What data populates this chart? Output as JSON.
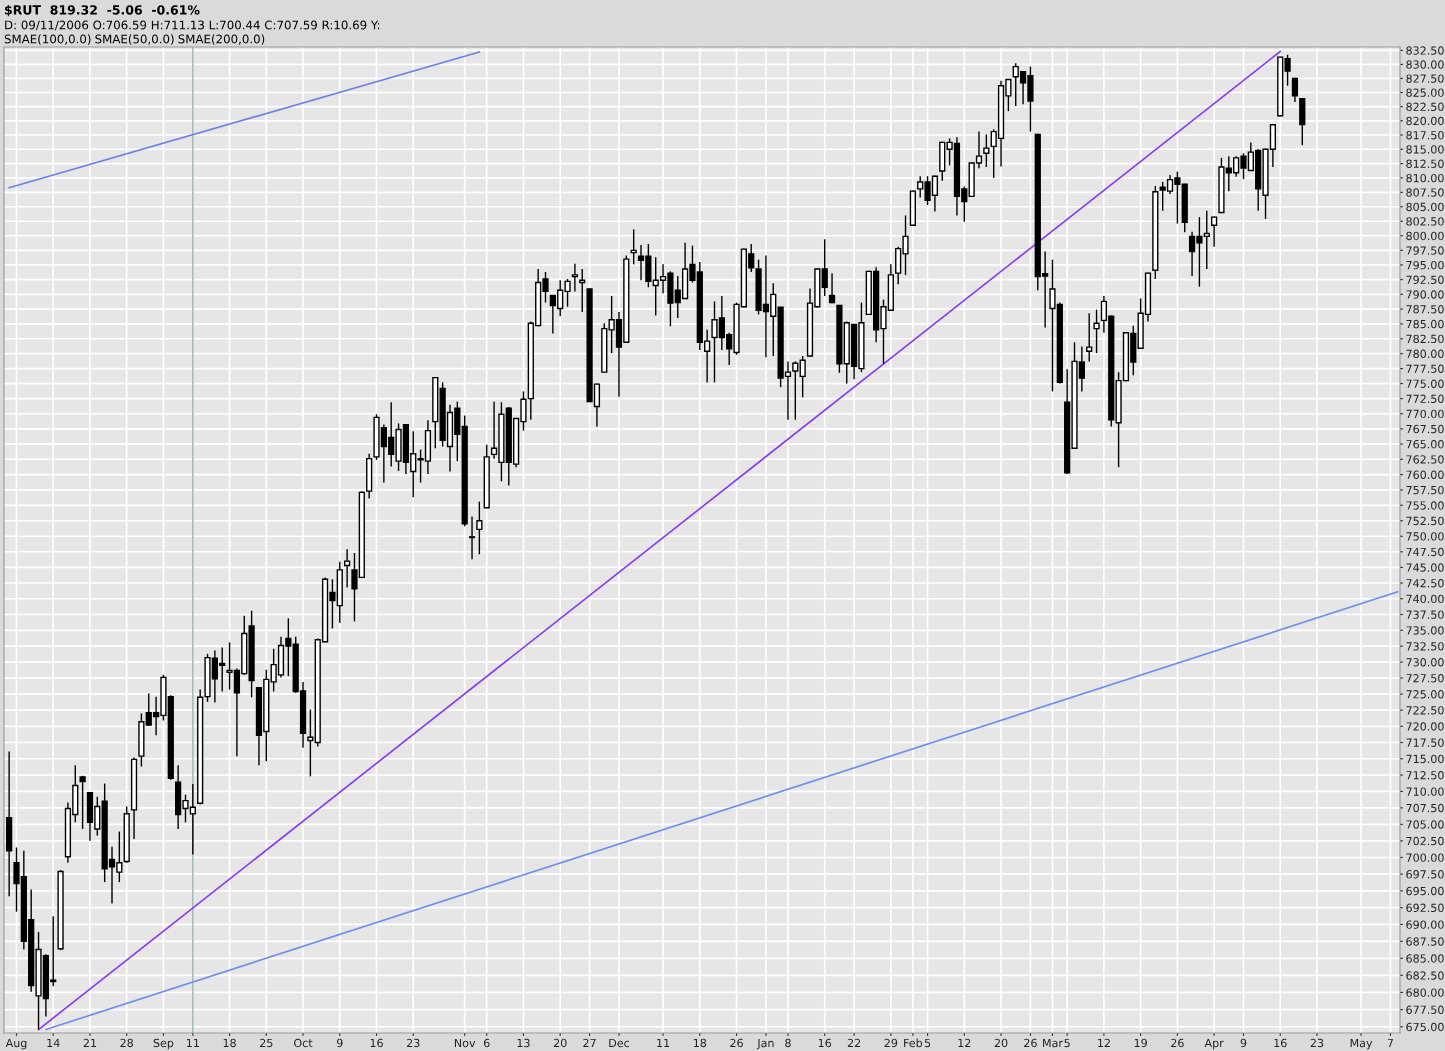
{
  "chart_data": {
    "type": "candlestick",
    "title": "$RUT  819.32  -5.06  -0.61%",
    "subtitle": "D: 09/11/2006 O:706.59 H:711.13 L:700.44 C:707.59 R:10.69 Y:",
    "annotations": [
      "SMAE(100,0.0)",
      "SMAE(50,0.0)",
      "SMAE(200,0.0)"
    ],
    "categories": [
      null,
      "Aug",
      null,
      null,
      null,
      null,
      "14",
      null,
      null,
      null,
      null,
      "21",
      null,
      null,
      null,
      null,
      "28",
      null,
      null,
      null,
      null,
      "Sep",
      null,
      null,
      null,
      "11",
      null,
      null,
      null,
      null,
      "18",
      null,
      null,
      null,
      null,
      "25",
      null,
      null,
      null,
      null,
      "Oct",
      null,
      null,
      null,
      null,
      "9",
      null,
      null,
      null,
      null,
      "16",
      null,
      null,
      null,
      null,
      "23",
      null,
      null,
      null,
      null,
      null,
      null,
      "Nov",
      null,
      null,
      "6",
      null,
      null,
      null,
      null,
      "13",
      null,
      null,
      null,
      null,
      "20",
      null,
      null,
      null,
      "27",
      null,
      null,
      null,
      "Dec",
      null,
      null,
      null,
      null,
      null,
      "11",
      null,
      null,
      null,
      null,
      "18",
      null,
      null,
      null,
      null,
      "26",
      null,
      null,
      null,
      "Jan",
      null,
      null,
      "8",
      null,
      null,
      null,
      null,
      "16",
      null,
      null,
      null,
      "22",
      null,
      null,
      null,
      null,
      "29",
      null,
      null,
      "Feb",
      null,
      "5",
      null,
      null,
      null,
      null,
      "12",
      null,
      null,
      null,
      null,
      "20",
      null,
      null,
      null,
      "26",
      null,
      null,
      "Mar",
      null,
      "5",
      null,
      null,
      null,
      null,
      "12",
      null,
      null,
      null,
      null,
      "19",
      null,
      null,
      null,
      null,
      "26",
      null,
      null,
      null,
      null,
      "Apr",
      null,
      null,
      null,
      "9",
      null,
      null,
      null,
      null,
      "16",
      null,
      null,
      null,
      null,
      "23",
      null,
      null,
      null,
      null,
      null,
      "May",
      null,
      null,
      null,
      "7",
      null
    ],
    "color": "#000000",
    "ohlc": [
      [
        706.0,
        716.1,
        694.2,
        701.0
      ],
      [
        699.2,
        701.5,
        691.9,
        696.1
      ],
      [
        697.1,
        701.0,
        686.3,
        687.5
      ],
      [
        690.7,
        695.2,
        680.1,
        681.0
      ],
      [
        679.5,
        688.9,
        674.6,
        686.3
      ],
      [
        685.4,
        685.6,
        676.5,
        679.1
      ],
      [
        681.6,
        691.2,
        680.9,
        681.8
      ],
      [
        686.4,
        698.1,
        686.2,
        697.9
      ],
      [
        700.1,
        708.3,
        699.2,
        707.4
      ],
      [
        706.5,
        714.0,
        705.3,
        710.9
      ],
      [
        712.2,
        712.4,
        704.3,
        711.5
      ],
      [
        709.8,
        709.9,
        702.5,
        705.3
      ],
      [
        704.3,
        709.2,
        703.3,
        707.7
      ],
      [
        708.5,
        711.2,
        696.3,
        698.3
      ],
      [
        699.7,
        701.6,
        693.1,
        698.6
      ],
      [
        697.8,
        703.9,
        696.3,
        699.2
      ],
      [
        699.4,
        707.7,
        699.2,
        706.6
      ],
      [
        707.2,
        715.2,
        702.8,
        714.9
      ],
      [
        715.4,
        722.0,
        713.8,
        720.7
      ],
      [
        722.1,
        725.1,
        720.1,
        720.2
      ],
      [
        722.1,
        724.6,
        718.6,
        721.5
      ],
      [
        721.7,
        728.0,
        720.9,
        727.6
      ],
      [
        724.6,
        724.8,
        711.8,
        712.0
      ],
      [
        711.4,
        714.0,
        704.3,
        706.5
      ],
      [
        707.4,
        709.5,
        705.3,
        708.6
      ],
      [
        706.59,
        711.13,
        700.44,
        707.59
      ],
      [
        708.2,
        725.7,
        708.0,
        724.5
      ],
      [
        724.6,
        731.3,
        723.8,
        730.7
      ],
      [
        730.6,
        731.8,
        723.7,
        727.4
      ],
      [
        729.8,
        732.3,
        725.4,
        729.5
      ],
      [
        728.4,
        733.1,
        725.7,
        728.7
      ],
      [
        728.7,
        729.0,
        715.4,
        725.2
      ],
      [
        728.2,
        737.3,
        728.0,
        734.5
      ],
      [
        735.7,
        738.1,
        724.5,
        727.1
      ],
      [
        726.0,
        726.0,
        714.0,
        718.6
      ],
      [
        719.2,
        728.8,
        714.6,
        727.3
      ],
      [
        726.9,
        732.1,
        725.4,
        729.6
      ],
      [
        728.0,
        734.0,
        727.6,
        732.6
      ],
      [
        733.7,
        736.9,
        727.8,
        732.5
      ],
      [
        732.8,
        734.0,
        725.2,
        725.4
      ],
      [
        725.5,
        726.9,
        716.7,
        718.9
      ],
      [
        717.8,
        722.6,
        712.3,
        718.3
      ],
      [
        717.5,
        733.7,
        716.9,
        733.5
      ],
      [
        733.2,
        743.4,
        733.1,
        743.1
      ],
      [
        741.0,
        743.1,
        735.3,
        739.7
      ],
      [
        738.9,
        745.9,
        736.2,
        744.6
      ],
      [
        745.3,
        747.9,
        741.8,
        746.0
      ],
      [
        744.6,
        747.3,
        736.4,
        741.6
      ],
      [
        743.4,
        757.3,
        743.3,
        757.1
      ],
      [
        757.3,
        763.4,
        756.1,
        762.6
      ],
      [
        762.9,
        769.9,
        762.4,
        769.4
      ],
      [
        767.7,
        768.2,
        758.7,
        764.6
      ],
      [
        766.1,
        771.9,
        761.3,
        763.3
      ],
      [
        762.2,
        768.4,
        760.6,
        767.4
      ],
      [
        768.2,
        768.3,
        760.1,
        762.0
      ],
      [
        760.5,
        767.1,
        756.3,
        763.4
      ],
      [
        762.4,
        764.1,
        758.7,
        762.6
      ],
      [
        762.2,
        768.9,
        760.1,
        767.2
      ],
      [
        768.7,
        776.0,
        764.3,
        776.0
      ],
      [
        774.2,
        775.2,
        764.6,
        765.6
      ],
      [
        764.6,
        771.5,
        760.5,
        770.2
      ],
      [
        770.9,
        772.0,
        762.2,
        766.6
      ],
      [
        767.9,
        769.7,
        751.6,
        752.0
      ],
      [
        749.8,
        753.2,
        746.3,
        749.9
      ],
      [
        751.1,
        755.6,
        747.1,
        752.5
      ],
      [
        754.6,
        764.9,
        754.6,
        762.9
      ],
      [
        763.3,
        772.0,
        762.6,
        764.3
      ],
      [
        762.0,
        771.9,
        758.9,
        769.9
      ],
      [
        770.9,
        771.1,
        758.2,
        762.0
      ],
      [
        761.7,
        769.3,
        761.2,
        769.2
      ],
      [
        768.7,
        773.7,
        767.2,
        772.4
      ],
      [
        772.5,
        785.4,
        769.0,
        785.1
      ],
      [
        784.7,
        794.3,
        784.6,
        792.0
      ],
      [
        792.6,
        793.8,
        788.6,
        790.5
      ],
      [
        789.8,
        789.9,
        783.4,
        788.1
      ],
      [
        787.6,
        792.4,
        786.3,
        790.7
      ],
      [
        790.5,
        792.6,
        787.9,
        792.2
      ],
      [
        793.0,
        795.2,
        790.5,
        793.3
      ],
      [
        792.0,
        794.3,
        787.0,
        792.4
      ],
      [
        790.9,
        791.0,
        771.9,
        772.0
      ],
      [
        771.2,
        775.0,
        767.9,
        774.9
      ],
      [
        776.9,
        785.1,
        776.8,
        784.2
      ],
      [
        784.0,
        789.7,
        780.1,
        785.7
      ],
      [
        785.7,
        787.0,
        772.8,
        781.1
      ],
      [
        781.9,
        796.6,
        781.8,
        796.0
      ],
      [
        797.1,
        801.1,
        795.1,
        797.5
      ],
      [
        796.5,
        798.4,
        792.4,
        795.8
      ],
      [
        796.5,
        798.6,
        791.2,
        792.2
      ],
      [
        791.5,
        796.3,
        786.4,
        792.4
      ],
      [
        792.4,
        795.1,
        790.2,
        793.0
      ],
      [
        793.6,
        793.9,
        784.6,
        788.5
      ],
      [
        790.7,
        793.1,
        786.0,
        788.6
      ],
      [
        789.3,
        798.8,
        789.2,
        794.3
      ],
      [
        795.1,
        798.3,
        792.0,
        792.4
      ],
      [
        793.8,
        795.5,
        780.6,
        781.9
      ],
      [
        780.4,
        784.0,
        775.2,
        782.1
      ],
      [
        782.7,
        788.8,
        775.2,
        785.7
      ],
      [
        786.0,
        789.7,
        780.6,
        782.7
      ],
      [
        783.2,
        783.5,
        778.1,
        780.8
      ],
      [
        780.2,
        788.6,
        779.8,
        788.3
      ],
      [
        787.9,
        797.8,
        787.8,
        797.7
      ],
      [
        796.9,
        798.6,
        793.8,
        794.5
      ],
      [
        794.3,
        795.9,
        786.6,
        787.3
      ],
      [
        788.3,
        796.6,
        779.4,
        787.1
      ],
      [
        786.3,
        791.9,
        779.6,
        790.0
      ],
      [
        787.8,
        787.8,
        774.4,
        775.9
      ],
      [
        776.2,
        778.7,
        769.0,
        776.9
      ],
      [
        777.1,
        778.7,
        769.0,
        778.4
      ],
      [
        776.2,
        779.6,
        772.7,
        778.9
      ],
      [
        779.6,
        791.0,
        779.5,
        788.5
      ],
      [
        787.9,
        794.4,
        787.8,
        794.3
      ],
      [
        794.3,
        799.4,
        789.7,
        791.2
      ],
      [
        789.8,
        793.6,
        788.5,
        788.6
      ],
      [
        788.1,
        788.2,
        776.8,
        778.3
      ],
      [
        778.3,
        785.4,
        775.0,
        785.2
      ],
      [
        784.9,
        785.0,
        775.7,
        777.9
      ],
      [
        777.5,
        788.6,
        776.9,
        785.2
      ],
      [
        786.6,
        794.0,
        786.5,
        793.9
      ],
      [
        793.9,
        794.6,
        781.9,
        784.0
      ],
      [
        784.2,
        789.1,
        778.3,
        787.9
      ],
      [
        787.3,
        795.1,
        787.2,
        793.3
      ],
      [
        793.6,
        798.1,
        791.7,
        797.8
      ],
      [
        796.9,
        803.5,
        793.3,
        799.9
      ],
      [
        801.8,
        807.8,
        801.7,
        807.7
      ],
      [
        808.1,
        810.3,
        806.6,
        809.3
      ],
      [
        809.3,
        810.3,
        805.3,
        806.1
      ],
      [
        807.0,
        810.4,
        804.2,
        810.3
      ],
      [
        811.2,
        816.3,
        809.5,
        816.2
      ],
      [
        815.0,
        816.9,
        812.2,
        816.2
      ],
      [
        816.0,
        817.1,
        803.5,
        806.8
      ],
      [
        808.1,
        808.5,
        802.4,
        805.9
      ],
      [
        806.8,
        812.7,
        806.7,
        812.6
      ],
      [
        812.6,
        818.1,
        811.7,
        813.8
      ],
      [
        814.3,
        817.6,
        811.9,
        815.2
      ],
      [
        815.5,
        818.5,
        810.0,
        818.1
      ],
      [
        816.9,
        827.1,
        812.0,
        826.2
      ],
      [
        824.4,
        827.4,
        821.7,
        827.3
      ],
      [
        827.8,
        830.2,
        822.6,
        829.6
      ],
      [
        828.7,
        828.8,
        822.9,
        826.7
      ],
      [
        828.0,
        829.6,
        818.1,
        823.5
      ],
      [
        817.6,
        817.7,
        790.7,
        793.0
      ],
      [
        793.5,
        797.3,
        784.4,
        793.1
      ],
      [
        787.6,
        795.9,
        773.7,
        790.9
      ],
      [
        788.3,
        788.6,
        775.0,
        775.2
      ],
      [
        771.9,
        777.4,
        760.1,
        760.3
      ],
      [
        764.3,
        781.9,
        764.2,
        778.7
      ],
      [
        778.6,
        781.2,
        773.7,
        775.9
      ],
      [
        780.4,
        786.8,
        778.7,
        781.1
      ],
      [
        784.2,
        787.4,
        780.1,
        785.1
      ],
      [
        785.6,
        789.7,
        783.5,
        788.8
      ],
      [
        786.3,
        786.4,
        767.9,
        769.0
      ],
      [
        768.5,
        776.9,
        761.2,
        775.5
      ],
      [
        775.5,
        783.6,
        775.4,
        783.5
      ],
      [
        783.4,
        784.7,
        776.4,
        778.6
      ],
      [
        780.9,
        789.3,
        780.8,
        786.8
      ],
      [
        786.6,
        793.7,
        785.4,
        793.6
      ],
      [
        794.1,
        808.6,
        792.6,
        807.6
      ],
      [
        808.4,
        809.3,
        804.3,
        807.9
      ],
      [
        807.7,
        810.5,
        807.2,
        809.7
      ],
      [
        810.0,
        811.1,
        802.1,
        808.9
      ],
      [
        808.9,
        809.0,
        800.6,
        802.3
      ],
      [
        799.9,
        800.7,
        793.1,
        797.3
      ],
      [
        799.9,
        803.2,
        791.3,
        798.8
      ],
      [
        799.9,
        804.3,
        794.3,
        800.4
      ],
      [
        801.8,
        803.3,
        798.1,
        803.2
      ],
      [
        804.0,
        813.5,
        803.9,
        811.9
      ],
      [
        811.7,
        813.8,
        807.7,
        810.9
      ],
      [
        810.9,
        813.8,
        810.2,
        813.5
      ],
      [
        813.8,
        814.3,
        809.8,
        811.7
      ],
      [
        811.3,
        816.2,
        811.2,
        814.5
      ],
      [
        814.8,
        815.0,
        804.3,
        808.1
      ],
      [
        807.0,
        815.1,
        802.9,
        815.0
      ],
      [
        815.0,
        819.4,
        811.9,
        819.3
      ],
      [
        820.9,
        831.4,
        820.8,
        831.3
      ],
      [
        831.0,
        831.7,
        826.2,
        828.8
      ],
      [
        827.5,
        827.6,
        823.3,
        824.4
      ],
      [
        823.9,
        824.0,
        815.7,
        819.32
      ],
      null,
      null,
      null,
      null,
      null,
      null,
      null,
      null,
      null,
      null,
      null,
      null,
      null
    ],
    "series": [
      {
        "type": "line",
        "color": "#8a3cf0",
        "values": [
          null,
          null,
          null,
          null,
          674.6,
          null,
          null,
          null,
          null,
          null,
          null,
          null,
          null,
          null,
          null,
          null,
          null,
          null,
          null,
          null,
          null,
          null,
          null,
          null,
          null,
          null,
          null,
          null,
          null,
          null,
          null,
          null,
          null,
          null,
          null,
          null,
          null,
          null,
          null,
          null,
          null,
          null,
          null,
          null,
          null,
          null,
          null,
          null,
          null,
          null,
          null,
          null,
          null,
          null,
          null,
          null,
          null,
          null,
          null,
          null,
          null,
          null,
          null,
          null,
          null,
          null,
          null,
          null,
          null,
          null,
          null,
          null,
          null,
          null,
          null,
          null,
          null,
          null,
          null,
          null,
          null,
          null,
          null,
          null,
          null,
          null,
          null,
          null,
          null,
          null,
          null,
          null,
          null,
          null,
          null,
          null,
          null,
          null,
          null,
          null,
          null,
          null,
          null,
          null,
          null,
          null,
          null,
          null,
          null,
          null,
          null,
          null,
          null,
          null,
          null,
          null,
          null,
          null,
          null,
          null,
          null,
          null,
          null,
          null,
          null,
          null,
          null,
          null,
          null,
          null,
          null,
          null,
          null,
          null,
          null,
          null,
          null,
          null,
          null,
          null,
          null,
          null,
          null,
          null,
          null,
          null,
          null,
          null,
          null,
          null,
          null,
          null,
          null,
          null,
          null,
          null,
          null,
          null,
          null,
          null,
          null,
          null,
          null,
          null,
          null,
          null,
          null,
          null,
          null,
          null,
          null,
          null,
          null,
          832.3,
          null,
          null,
          null,
          null,
          null,
          null,
          null,
          null,
          null,
          null,
          null,
          null,
          null,
          null,
          null,
          null
        ]
      },
      {
        "type": "line",
        "color": "#6f7ee8",
        "values": [
          808.3,
          null,
          null,
          null,
          null,
          null,
          null,
          null,
          null,
          null,
          null,
          null,
          null,
          null,
          null,
          null,
          null,
          null,
          null,
          null,
          null,
          null,
          null,
          null,
          null,
          null,
          null,
          null,
          null,
          null,
          null,
          null,
          null,
          null,
          null,
          null,
          null,
          null,
          null,
          null,
          null,
          null,
          null,
          null,
          null,
          null,
          null,
          null,
          null,
          null,
          null,
          null,
          null,
          null,
          null,
          null,
          null,
          null,
          null,
          null,
          null,
          null,
          null,
          null,
          832.2,
          null,
          null,
          null,
          null,
          null,
          null,
          null,
          null,
          null,
          null,
          null,
          null,
          null,
          null,
          null,
          null,
          null,
          null,
          null,
          null,
          null,
          null,
          null,
          null,
          null,
          null,
          null,
          null,
          null,
          null,
          null,
          null,
          null,
          null,
          null,
          null,
          null,
          null,
          null,
          null,
          null,
          null,
          null,
          null,
          null,
          null,
          null,
          null,
          null,
          null,
          null,
          null,
          null,
          null,
          null,
          null,
          null,
          null,
          null,
          null,
          null,
          null,
          null,
          null,
          null,
          null,
          null,
          null,
          null,
          null,
          null,
          null,
          null,
          null,
          null,
          null,
          null,
          null,
          null,
          null,
          null,
          null,
          null,
          null,
          null,
          null,
          null,
          null,
          null,
          null,
          null,
          null,
          null,
          null,
          null,
          null,
          null,
          null,
          null,
          null,
          null,
          null,
          null,
          null,
          null,
          null,
          null,
          null,
          null,
          null,
          null,
          null,
          null,
          null,
          null,
          null,
          null,
          null,
          null,
          null,
          null,
          null,
          null,
          null,
          null
        ]
      },
      {
        "type": "line",
        "color": "#6f8cf0",
        "values": [
          null,
          null,
          null,
          null,
          null,
          674.6,
          null,
          null,
          null,
          null,
          null,
          null,
          null,
          null,
          null,
          null,
          null,
          null,
          null,
          null,
          null,
          null,
          null,
          null,
          null,
          null,
          null,
          null,
          null,
          null,
          null,
          null,
          null,
          null,
          null,
          null,
          null,
          null,
          null,
          null,
          null,
          null,
          null,
          null,
          null,
          null,
          null,
          null,
          null,
          null,
          null,
          null,
          null,
          null,
          null,
          null,
          null,
          null,
          null,
          null,
          null,
          null,
          null,
          null,
          null,
          null,
          null,
          null,
          null,
          null,
          null,
          null,
          null,
          null,
          null,
          null,
          null,
          null,
          null,
          null,
          null,
          null,
          null,
          null,
          null,
          null,
          null,
          null,
          null,
          null,
          null,
          null,
          null,
          null,
          null,
          null,
          null,
          null,
          null,
          null,
          null,
          null,
          null,
          null,
          null,
          null,
          null,
          null,
          null,
          null,
          null,
          null,
          null,
          null,
          null,
          null,
          null,
          null,
          null,
          null,
          null,
          null,
          null,
          null,
          null,
          null,
          null,
          null,
          null,
          null,
          null,
          null,
          null,
          null,
          null,
          null,
          null,
          null,
          null,
          null,
          null,
          null,
          null,
          null,
          null,
          null,
          null,
          null,
          null,
          null,
          null,
          null,
          null,
          null,
          null,
          null,
          null,
          null,
          null,
          null,
          null,
          null,
          null,
          null,
          null,
          null,
          null,
          null,
          null,
          null,
          null,
          null,
          null,
          null,
          null,
          null,
          null,
          null,
          null,
          null,
          null,
          null,
          null,
          null,
          null,
          null,
          null,
          null,
          null,
          741.1
        ]
      }
    ],
    "log": true,
    "grid": true,
    "ylim": [
      674.1,
      833.1
    ],
    "yticks": [
      {
        "value": 675.0,
        "label": "675.00"
      },
      {
        "value": 677.5,
        "label": "677.50"
      },
      {
        "value": 680.0,
        "label": "680.00"
      },
      {
        "value": 682.5,
        "label": "682.50"
      },
      {
        "value": 685.0,
        "label": "685.00"
      },
      {
        "value": 687.5,
        "label": "687.50"
      },
      {
        "value": 690.0,
        "label": "690.00"
      },
      {
        "value": 692.5,
        "label": "692.50"
      },
      {
        "value": 695.0,
        "label": "695.00"
      },
      {
        "value": 697.5,
        "label": "697.50"
      },
      {
        "value": 700.0,
        "label": "700.00"
      },
      {
        "value": 702.5,
        "label": "702.50"
      },
      {
        "value": 705.0,
        "label": "705.00"
      },
      {
        "value": 707.5,
        "label": "707.50"
      },
      {
        "value": 710.0,
        "label": "710.00"
      },
      {
        "value": 712.5,
        "label": "712.50"
      },
      {
        "value": 715.0,
        "label": "715.00"
      },
      {
        "value": 717.5,
        "label": "717.50"
      },
      {
        "value": 720.0,
        "label": "720.00"
      },
      {
        "value": 722.5,
        "label": "722.50"
      },
      {
        "value": 725.0,
        "label": "725.00"
      },
      {
        "value": 727.5,
        "label": "727.50"
      },
      {
        "value": 730.0,
        "label": "730.00"
      },
      {
        "value": 732.5,
        "label": "732.50"
      },
      {
        "value": 735.0,
        "label": "735.00"
      },
      {
        "value": 737.5,
        "label": "737.50"
      },
      {
        "value": 740.0,
        "label": "740.00"
      },
      {
        "value": 742.5,
        "label": "742.50"
      },
      {
        "value": 745.0,
        "label": "745.00"
      },
      {
        "value": 747.5,
        "label": "747.50"
      },
      {
        "value": 750.0,
        "label": "750.00"
      },
      {
        "value": 752.5,
        "label": "752.50"
      },
      {
        "value": 755.0,
        "label": "755.00"
      },
      {
        "value": 757.5,
        "label": "757.50"
      },
      {
        "value": 760.0,
        "label": "760.00"
      },
      {
        "value": 762.5,
        "label": "762.50"
      },
      {
        "value": 765.0,
        "label": "765.00"
      },
      {
        "value": 767.5,
        "label": "767.50"
      },
      {
        "value": 770.0,
        "label": "770.00"
      },
      {
        "value": 772.5,
        "label": "772.50"
      },
      {
        "value": 775.0,
        "label": "775.00"
      },
      {
        "value": 777.5,
        "label": "777.50"
      },
      {
        "value": 780.0,
        "label": "780.00"
      },
      {
        "value": 782.5,
        "label": "782.50"
      },
      {
        "value": 785.0,
        "label": "785.00"
      },
      {
        "value": 787.5,
        "label": "787.50"
      },
      {
        "value": 790.0,
        "label": "790.00"
      },
      {
        "value": 792.5,
        "label": "792.50"
      },
      {
        "value": 795.0,
        "label": "795.00"
      },
      {
        "value": 797.5,
        "label": "797.50"
      },
      {
        "value": 800.0,
        "label": "800.00"
      },
      {
        "value": 802.5,
        "label": "802.50"
      },
      {
        "value": 805.0,
        "label": "805.00"
      },
      {
        "value": 807.5,
        "label": "807.50"
      },
      {
        "value": 810.0,
        "label": "810.00"
      },
      {
        "value": 812.5,
        "label": "812.50"
      },
      {
        "value": 815.0,
        "label": "815.00"
      },
      {
        "value": 817.5,
        "label": "817.50"
      },
      {
        "value": 820.0,
        "label": "820.00"
      },
      {
        "value": 822.5,
        "label": "822.50"
      },
      {
        "value": 825.0,
        "label": "825.00"
      },
      {
        "value": 827.5,
        "label": "827.50"
      },
      {
        "value": 830.0,
        "label": "830.00"
      },
      {
        "value": 832.5,
        "label": "832.50"
      }
    ]
  }
}
